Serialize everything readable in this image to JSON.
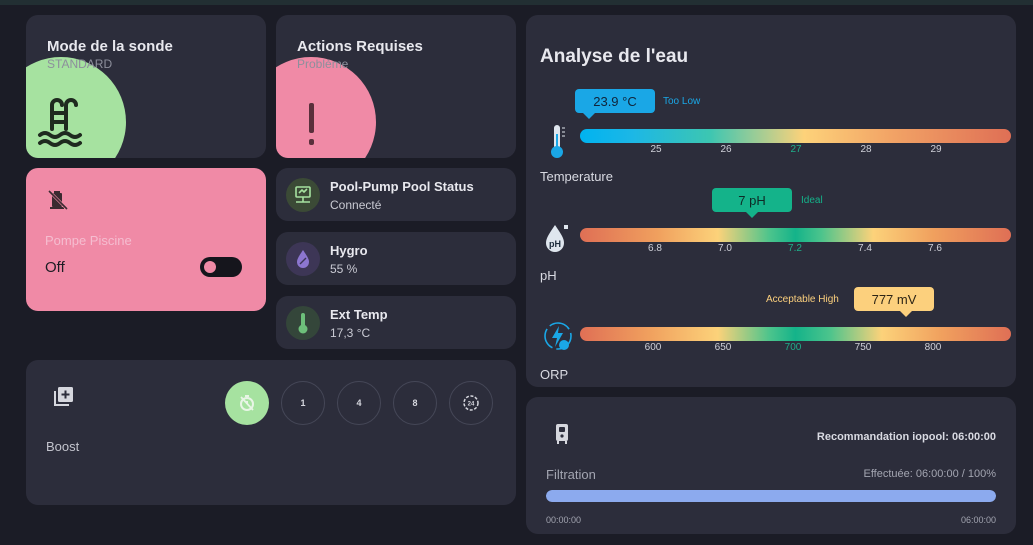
{
  "colors": {
    "card": "#2c2d3b",
    "green_blob": "#a6e2a0",
    "pink": "#f08aa6",
    "temp_bubble": "#1aa7e6",
    "ph_bubble": "#14b38a",
    "orp_bubble": "#fcd07d"
  },
  "probe_mode": {
    "title": "Mode de la sonde",
    "subtitle": "STANDARD",
    "icon": "pool-icon"
  },
  "actions": {
    "title": "Actions Requises",
    "subtitle": "Problème",
    "icon": "exclamation-icon"
  },
  "pump": {
    "icon": "pump-off-icon",
    "name": "Pompe Piscine",
    "state": "Off",
    "toggle_on": false
  },
  "sensors": [
    {
      "name": "Pool-Pump Pool Status",
      "value": "Connecté",
      "icon": "network-icon"
    },
    {
      "name": "Hygro",
      "value": "55 %",
      "icon": "water-drop-icon"
    },
    {
      "name": "Ext Temp",
      "value": "17,3 °C",
      "icon": "thermometer-icon"
    }
  ],
  "boost": {
    "label": "Boost",
    "icon": "add-box-icon",
    "buttons": [
      {
        "label": "",
        "icon": "timer-off-icon",
        "active": true
      },
      {
        "label": "1",
        "active": false
      },
      {
        "label": "4",
        "active": false
      },
      {
        "label": "8",
        "active": false
      },
      {
        "label": "",
        "icon": "24h-icon",
        "active": false
      }
    ]
  },
  "water": {
    "title": "Analyse de l'eau",
    "temperature": {
      "label": "Temperature",
      "value_text": "23.9 °C",
      "value": 23.9,
      "status": "Too Low",
      "ticks": [
        "25",
        "26",
        "27",
        "28",
        "29"
      ],
      "ideal_tick": "27",
      "icon": "thermometer-icon"
    },
    "ph": {
      "label": "pH",
      "value_text": "7 pH",
      "value": 7.0,
      "status": "Ideal",
      "ticks": [
        "6.8",
        "7.0",
        "7.2",
        "7.4",
        "7.6"
      ],
      "ideal_tick": "7.2",
      "icon": "ph-drop-icon"
    },
    "orp": {
      "label": "ORP",
      "value_text": "777 mV",
      "value": 777,
      "status": "Acceptable High",
      "ticks": [
        "600",
        "650",
        "700",
        "750",
        "800"
      ],
      "ideal_tick": "700",
      "icon": "orp-bolt-icon"
    }
  },
  "filtration": {
    "icon": "filter-device-icon",
    "recommendation": "Recommandation iopool: 06:00:00",
    "label": "Filtration",
    "done": "Effectuée: 06:00:00 / 100%",
    "progress": 1.0,
    "start": "00:00:00",
    "end": "06:00:00"
  }
}
